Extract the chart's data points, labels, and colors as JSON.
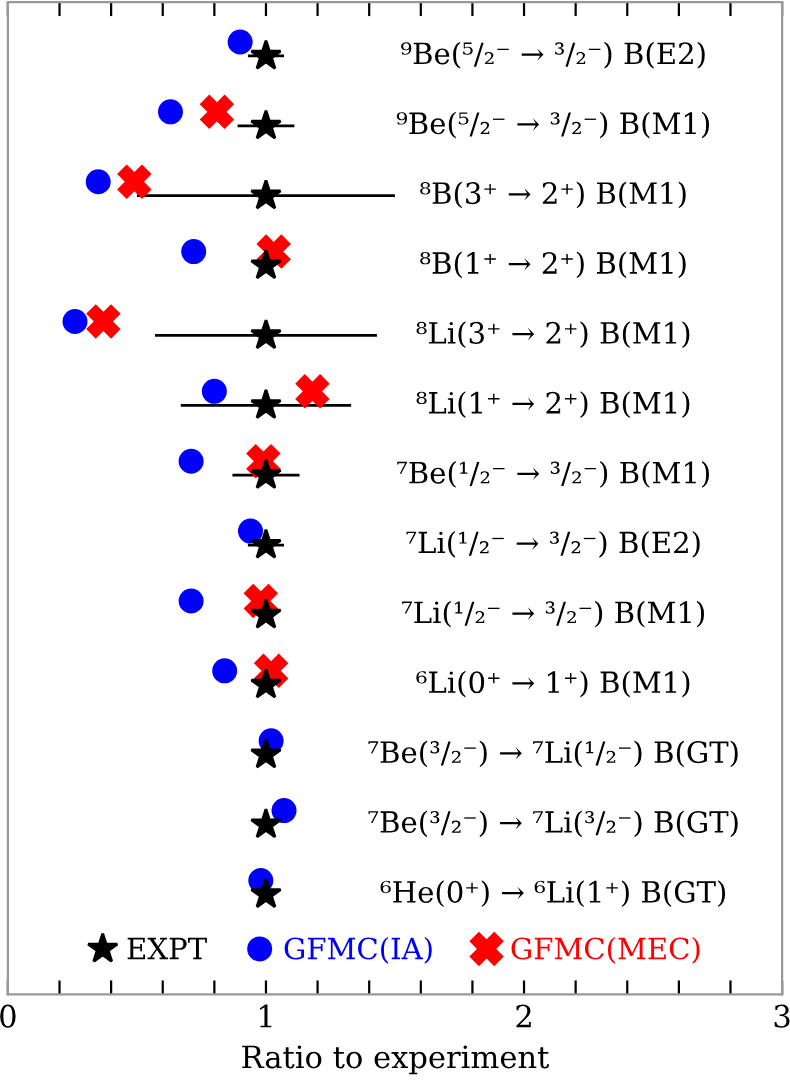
{
  "chart_data": {
    "type": "scatter",
    "orientation": "horizontal",
    "xlabel": "Ratio to experiment",
    "categories": [
      "⁹Be(⁵/₂⁻ → ³/₂⁻) B(E2)",
      "⁹Be(⁵/₂⁻ → ³/₂⁻) B(M1)",
      "⁸B(3⁺ → 2⁺) B(M1)",
      "⁸B(1⁺ → 2⁺) B(M1)",
      "⁸Li(3⁺ → 2⁺) B(M1)",
      "⁸Li(1⁺ → 2⁺) B(M1)",
      "⁷Be(¹/₂⁻ → ³/₂⁻) B(M1)",
      "⁷Li(¹/₂⁻ → ³/₂⁻) B(E2)",
      "⁷Li(¹/₂⁻ → ³/₂⁻) B(M1)",
      "⁶Li(0⁺ → 1⁺) B(M1)",
      "⁷Be(³/₂⁻) → ⁷Li(¹/₂⁻) B(GT)",
      "⁷Be(³/₂⁻) → ⁷Li(³/₂⁻) B(GT)",
      "⁶He(0⁺) → ⁶Li(1⁺) B(GT)"
    ],
    "series": [
      {
        "name": "EXPT",
        "color": "#000000",
        "marker": "star",
        "values": [
          1,
          1,
          1,
          1,
          1,
          1,
          1,
          1,
          1,
          1,
          1,
          1,
          1
        ],
        "errors": [
          0.07,
          0.11,
          0.5,
          null,
          0.43,
          0.33,
          0.13,
          0.07,
          0.03,
          0.02,
          null,
          null,
          null
        ]
      },
      {
        "name": "GFMC(IA)",
        "color": "#0000ff",
        "marker": "circle",
        "values": [
          0.9,
          0.63,
          0.35,
          0.72,
          0.26,
          0.8,
          0.71,
          0.94,
          0.71,
          0.84,
          1.02,
          1.07,
          0.98
        ]
      },
      {
        "name": "GFMC(MEC)",
        "color": "#ff0000",
        "marker": "cross",
        "values": [
          null,
          0.81,
          0.49,
          1.03,
          0.37,
          1.18,
          0.99,
          null,
          0.98,
          1.02,
          null,
          null,
          null
        ]
      }
    ],
    "xlim": [
      0,
      3
    ],
    "xticks": [
      0,
      {
        "value": 0.2,
        "label": null
      },
      {
        "value": 0.4,
        "label": null
      },
      {
        "value": 0.6,
        "label": null
      },
      {
        "value": 0.8,
        "label": null
      },
      1,
      {
        "value": 1.2,
        "label": null
      },
      {
        "value": 1.4,
        "label": null
      },
      {
        "value": 1.6,
        "label": null
      },
      {
        "value": 1.8,
        "label": null
      },
      2,
      {
        "value": 2.2,
        "label": null
      },
      {
        "value": 2.4,
        "label": null
      },
      {
        "value": 2.6,
        "label": null
      },
      {
        "value": 2.8,
        "label": null
      },
      3
    ],
    "legend": "bottom",
    "grid": false
  }
}
